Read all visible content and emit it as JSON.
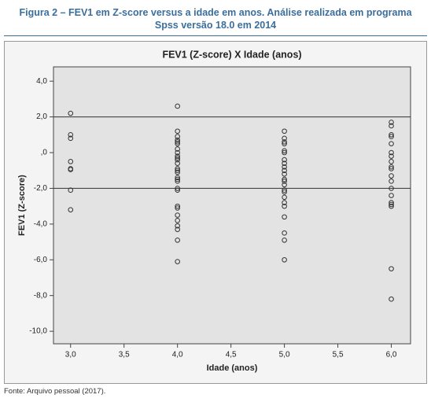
{
  "caption": "Figura 2 – FEV1 em Z-score versus a idade em anos. Análise realizada em programa Spss versão 18.0 em 2014",
  "source": "Fonte: Arquivo pessoal (2017).",
  "chart_data": {
    "type": "scatter",
    "title": "FEV1 (Z-score) X Idade (anos)",
    "x_label": "Idade (anos)",
    "y_label": "FEV1 (Z-score)",
    "color": "#333333",
    "reference_lines": [
      2,
      -2
    ],
    "xlim": [
      2.84,
      6.18
    ],
    "ylim": [
      -10.7,
      4.8
    ],
    "xticks": [
      {
        "value": 3,
        "label": "3,0"
      },
      {
        "value": 3.5,
        "label": "3,5"
      },
      {
        "value": 4,
        "label": "4,0"
      },
      {
        "value": 4.5,
        "label": "4,5"
      },
      {
        "value": 5,
        "label": "5,0"
      },
      {
        "value": 5.5,
        "label": "5,5"
      },
      {
        "value": 6,
        "label": "6,0"
      }
    ],
    "yticks": [
      {
        "value": 4,
        "label": "4,0"
      },
      {
        "value": 2,
        "label": "2,0"
      },
      {
        "value": 0,
        "label": ",0"
      },
      {
        "value": -2,
        "label": "-2,0"
      },
      {
        "value": -4,
        "label": "-4,0"
      },
      {
        "value": -6,
        "label": "-6,0"
      },
      {
        "value": -8,
        "label": "-8,0"
      },
      {
        "value": -10,
        "label": "-10,0"
      }
    ],
    "x": [
      3,
      3,
      3,
      3,
      3,
      3,
      3,
      3,
      4,
      4,
      4,
      4,
      4,
      4,
      4,
      4,
      4,
      4,
      4,
      4,
      4,
      4,
      4,
      4,
      4,
      4,
      4,
      4,
      4,
      4,
      4,
      4,
      4,
      4,
      4,
      4,
      5,
      5,
      5,
      5,
      5,
      5,
      5,
      5,
      5,
      5,
      5,
      5,
      5,
      5,
      5,
      5,
      5,
      5,
      5,
      5,
      5,
      5,
      5,
      6,
      6,
      6,
      6,
      6,
      6,
      6,
      6,
      6,
      6,
      6,
      6,
      6,
      6,
      6,
      6,
      6,
      6,
      6
    ],
    "values": [
      2.2,
      1.0,
      0.8,
      -0.5,
      -0.9,
      -0.95,
      -2.1,
      -3.2,
      2.6,
      1.2,
      0.9,
      0.7,
      0.6,
      0.5,
      0.2,
      0.0,
      -0.2,
      -0.3,
      -0.4,
      -0.6,
      -0.9,
      -1.0,
      -1.1,
      -1.4,
      -1.5,
      -1.6,
      -2.0,
      -2.1,
      -3.0,
      -3.1,
      -3.5,
      -3.8,
      -4.1,
      -4.3,
      -4.9,
      -6.1,
      1.2,
      0.8,
      0.6,
      0.5,
      0.1,
      0.0,
      -0.4,
      -0.6,
      -0.8,
      -1.0,
      -1.2,
      -1.5,
      -1.6,
      -1.8,
      -2.1,
      -2.2,
      -2.5,
      -2.8,
      -3.0,
      -3.6,
      -4.5,
      -4.9,
      -6.0,
      1.7,
      1.5,
      1.0,
      0.9,
      0.5,
      0.0,
      -0.2,
      -0.5,
      -0.8,
      -0.9,
      -1.3,
      -1.6,
      -2.0,
      -2.4,
      -2.8,
      -2.9,
      -3.0,
      -6.5,
      -8.2
    ]
  }
}
